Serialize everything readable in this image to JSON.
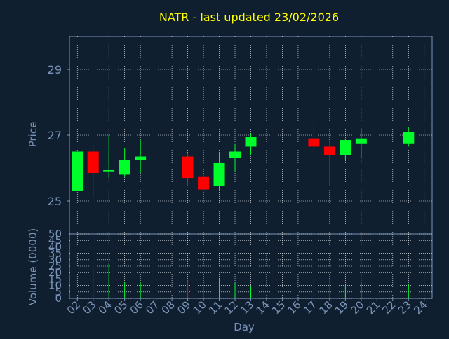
{
  "colors": {
    "background": "#0f1f30",
    "frame": "#7a94b8",
    "grid": "#ffffff",
    "title": "#ffff00",
    "axis_text": "#7a94b8",
    "up": "#00ff2a",
    "down": "#ff0000"
  },
  "chart_data": [
    {
      "type": "candlestick",
      "title": "NATR - last updated 23/02/2026",
      "ylabel": "Price",
      "ylim": [
        24.0,
        30.0
      ],
      "yticks": [
        25,
        27,
        29
      ],
      "grid": true,
      "candles": [
        {
          "day": "02",
          "open": 25.3,
          "high": 26.5,
          "low": 25.3,
          "close": 26.5
        },
        {
          "day": "03",
          "open": 26.5,
          "high": 26.7,
          "low": 25.1,
          "close": 25.85
        },
        {
          "day": "04",
          "open": 25.9,
          "high": 27.0,
          "low": 25.7,
          "close": 25.95
        },
        {
          "day": "05",
          "open": 25.8,
          "high": 26.6,
          "low": 25.75,
          "close": 26.25
        },
        {
          "day": "06",
          "open": 26.25,
          "high": 26.85,
          "low": 25.85,
          "close": 26.35
        },
        {
          "day": "09",
          "open": 26.35,
          "high": 26.45,
          "low": 25.45,
          "close": 25.7
        },
        {
          "day": "10",
          "open": 25.75,
          "high": 25.8,
          "low": 25.3,
          "close": 25.35
        },
        {
          "day": "11",
          "open": 25.45,
          "high": 26.45,
          "low": 25.3,
          "close": 26.15
        },
        {
          "day": "12",
          "open": 26.3,
          "high": 26.75,
          "low": 25.9,
          "close": 26.5
        },
        {
          "day": "13",
          "open": 26.65,
          "high": 27.05,
          "low": 26.4,
          "close": 26.95
        },
        {
          "day": "17",
          "open": 26.9,
          "high": 27.5,
          "low": 26.4,
          "close": 26.65
        },
        {
          "day": "18",
          "open": 26.65,
          "high": 26.85,
          "low": 25.45,
          "close": 26.4
        },
        {
          "day": "19",
          "open": 26.4,
          "high": 26.9,
          "low": 26.25,
          "close": 26.85
        },
        {
          "day": "20",
          "open": 26.75,
          "high": 27.2,
          "low": 26.3,
          "close": 26.9
        },
        {
          "day": "23",
          "open": 26.75,
          "high": 27.25,
          "low": 26.65,
          "close": 27.1
        }
      ]
    },
    {
      "type": "bar",
      "ylabel": "Volume (0000)",
      "xlabel": "Day",
      "ylim": [
        0,
        50
      ],
      "yticks": [
        0,
        5,
        10,
        15,
        20,
        25,
        30,
        35,
        40,
        45,
        50
      ],
      "categories": [
        "02",
        "03",
        "04",
        "05",
        "06",
        "07",
        "08",
        "09",
        "10",
        "11",
        "12",
        "13",
        "14",
        "15",
        "16",
        "17",
        "18",
        "19",
        "20",
        "21",
        "22",
        "23",
        "24"
      ],
      "volumes": [
        {
          "day": "03",
          "value": 25,
          "direction": "down"
        },
        {
          "day": "04",
          "value": 27,
          "direction": "up"
        },
        {
          "day": "05",
          "value": 13,
          "direction": "up"
        },
        {
          "day": "06",
          "value": 13,
          "direction": "up"
        },
        {
          "day": "09",
          "value": 14,
          "direction": "down"
        },
        {
          "day": "10",
          "value": 11,
          "direction": "down"
        },
        {
          "day": "11",
          "value": 15,
          "direction": "up"
        },
        {
          "day": "12",
          "value": 12,
          "direction": "up"
        },
        {
          "day": "13",
          "value": 9,
          "direction": "up"
        },
        {
          "day": "17",
          "value": 15,
          "direction": "down"
        },
        {
          "day": "18",
          "value": 15,
          "direction": "down"
        },
        {
          "day": "19",
          "value": 10,
          "direction": "up"
        },
        {
          "day": "20",
          "value": 12,
          "direction": "up"
        },
        {
          "day": "23",
          "value": 11,
          "direction": "up"
        }
      ]
    }
  ]
}
